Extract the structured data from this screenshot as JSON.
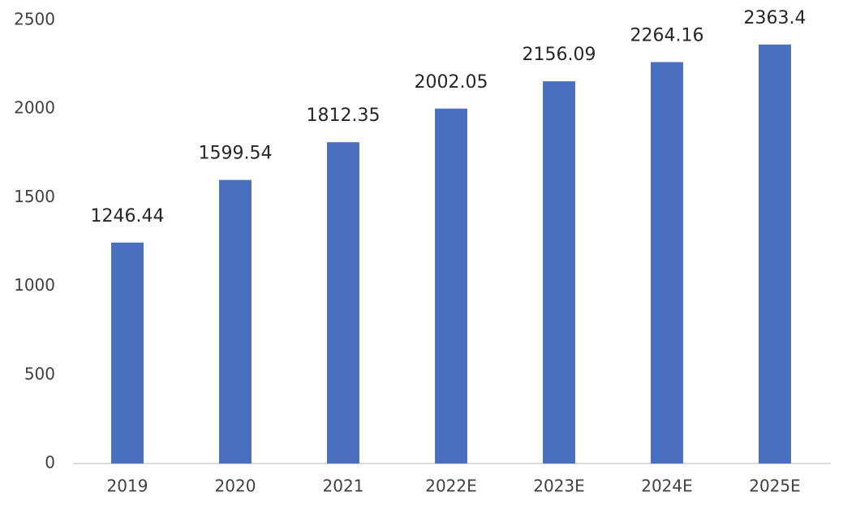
{
  "chart_data": {
    "type": "bar",
    "categories": [
      "2019",
      "2020",
      "2021",
      "2022E",
      "2023E",
      "2024E",
      "2025E"
    ],
    "values": [
      1246.44,
      1599.54,
      1812.35,
      2002.05,
      2156.09,
      2264.16,
      2363.4
    ],
    "color": "#4a6fbe",
    "ylim": [
      0,
      2500
    ],
    "yticks": [
      0,
      500,
      1000,
      1500,
      2000,
      2500
    ],
    "grid": false
  }
}
